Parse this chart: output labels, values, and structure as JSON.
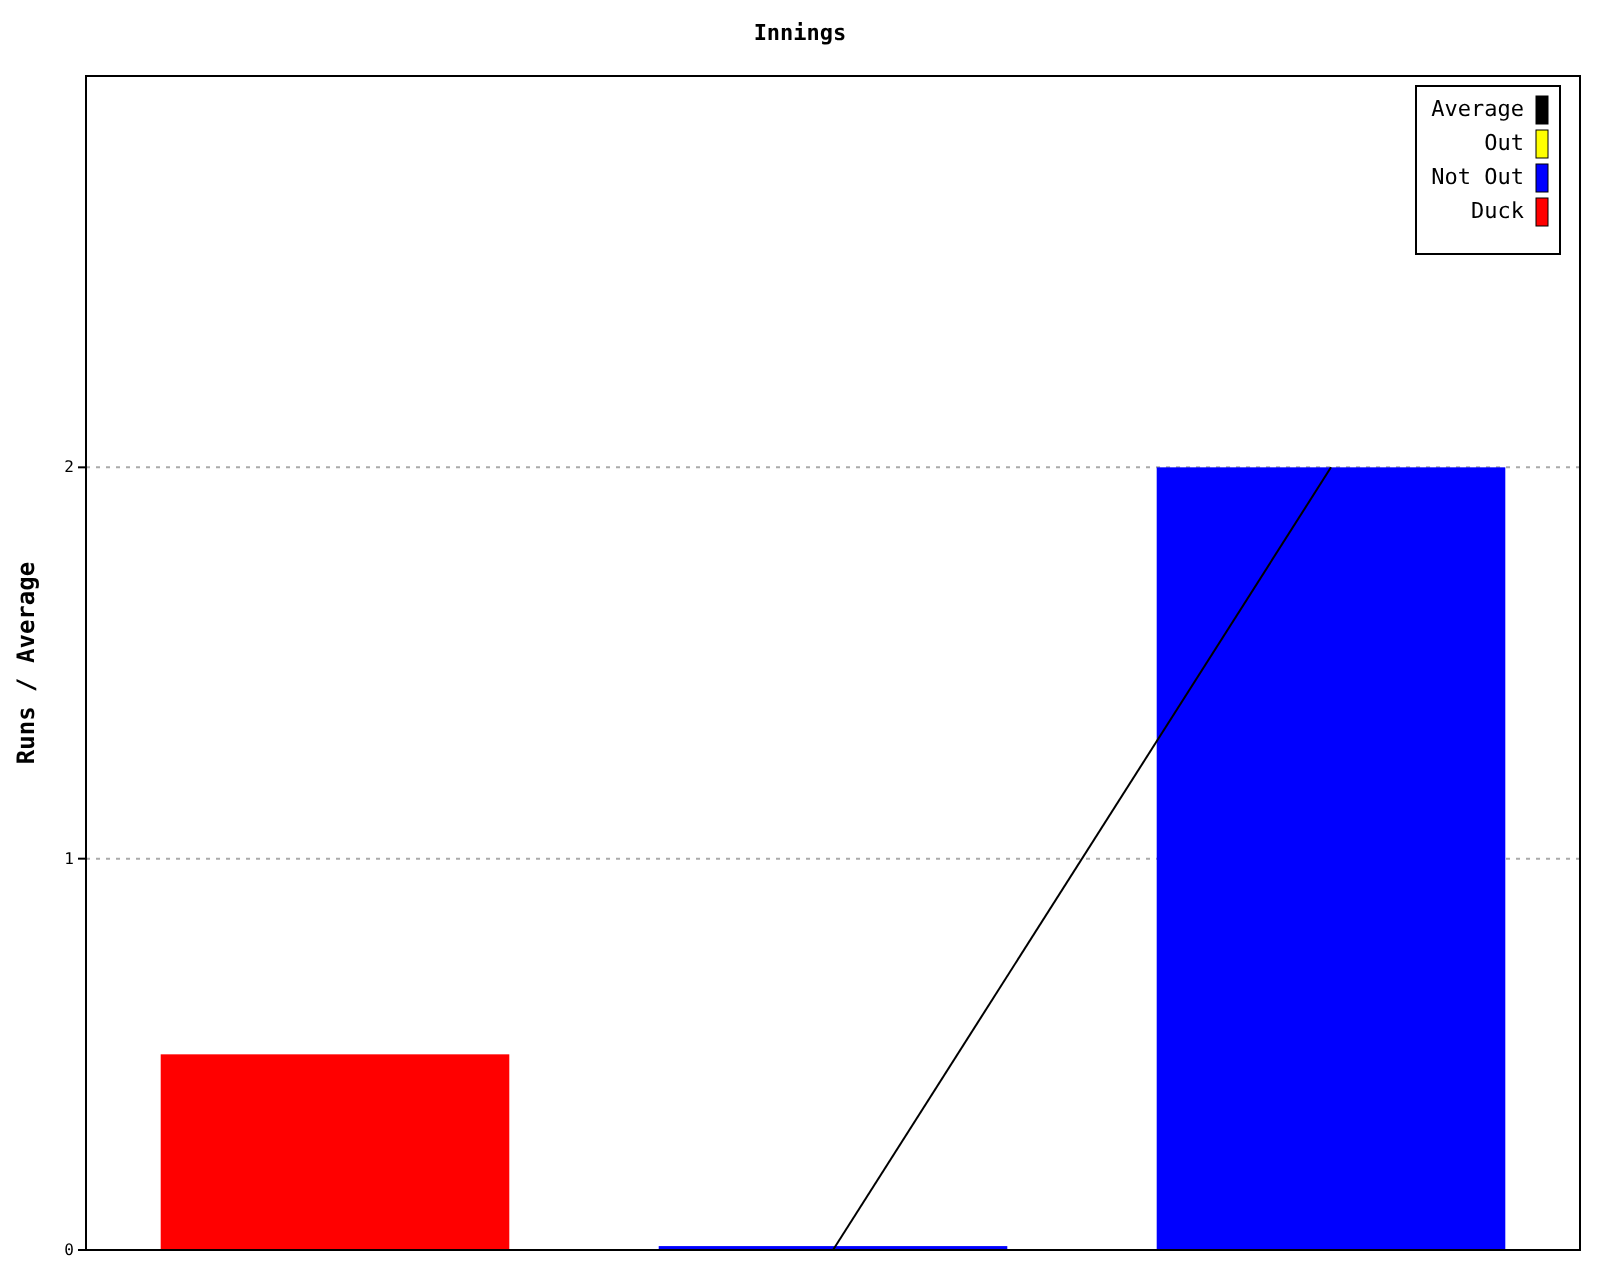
{
  "chart_data": {
    "type": "bar",
    "title": "Innings",
    "ylabel": "Runs / Average",
    "categories": [
      null,
      null,
      null
    ],
    "stacked": true,
    "ylim": [
      0,
      3
    ],
    "yticks": [
      0,
      1,
      2
    ],
    "grid": "y",
    "legend": "top right",
    "series": [
      {
        "name": "Average",
        "type": "line",
        "color": "#000000",
        "values": [
          null,
          0,
          2
        ]
      },
      {
        "name": "Out",
        "color": "#ffff00",
        "values": [
          null,
          null,
          null
        ]
      },
      {
        "name": "Not Out",
        "color": "#0000ff",
        "values": [
          null,
          0.01,
          2
        ]
      },
      {
        "name": "Duck",
        "color": "#ff0000",
        "values": [
          0.5,
          null,
          null
        ]
      }
    ]
  }
}
